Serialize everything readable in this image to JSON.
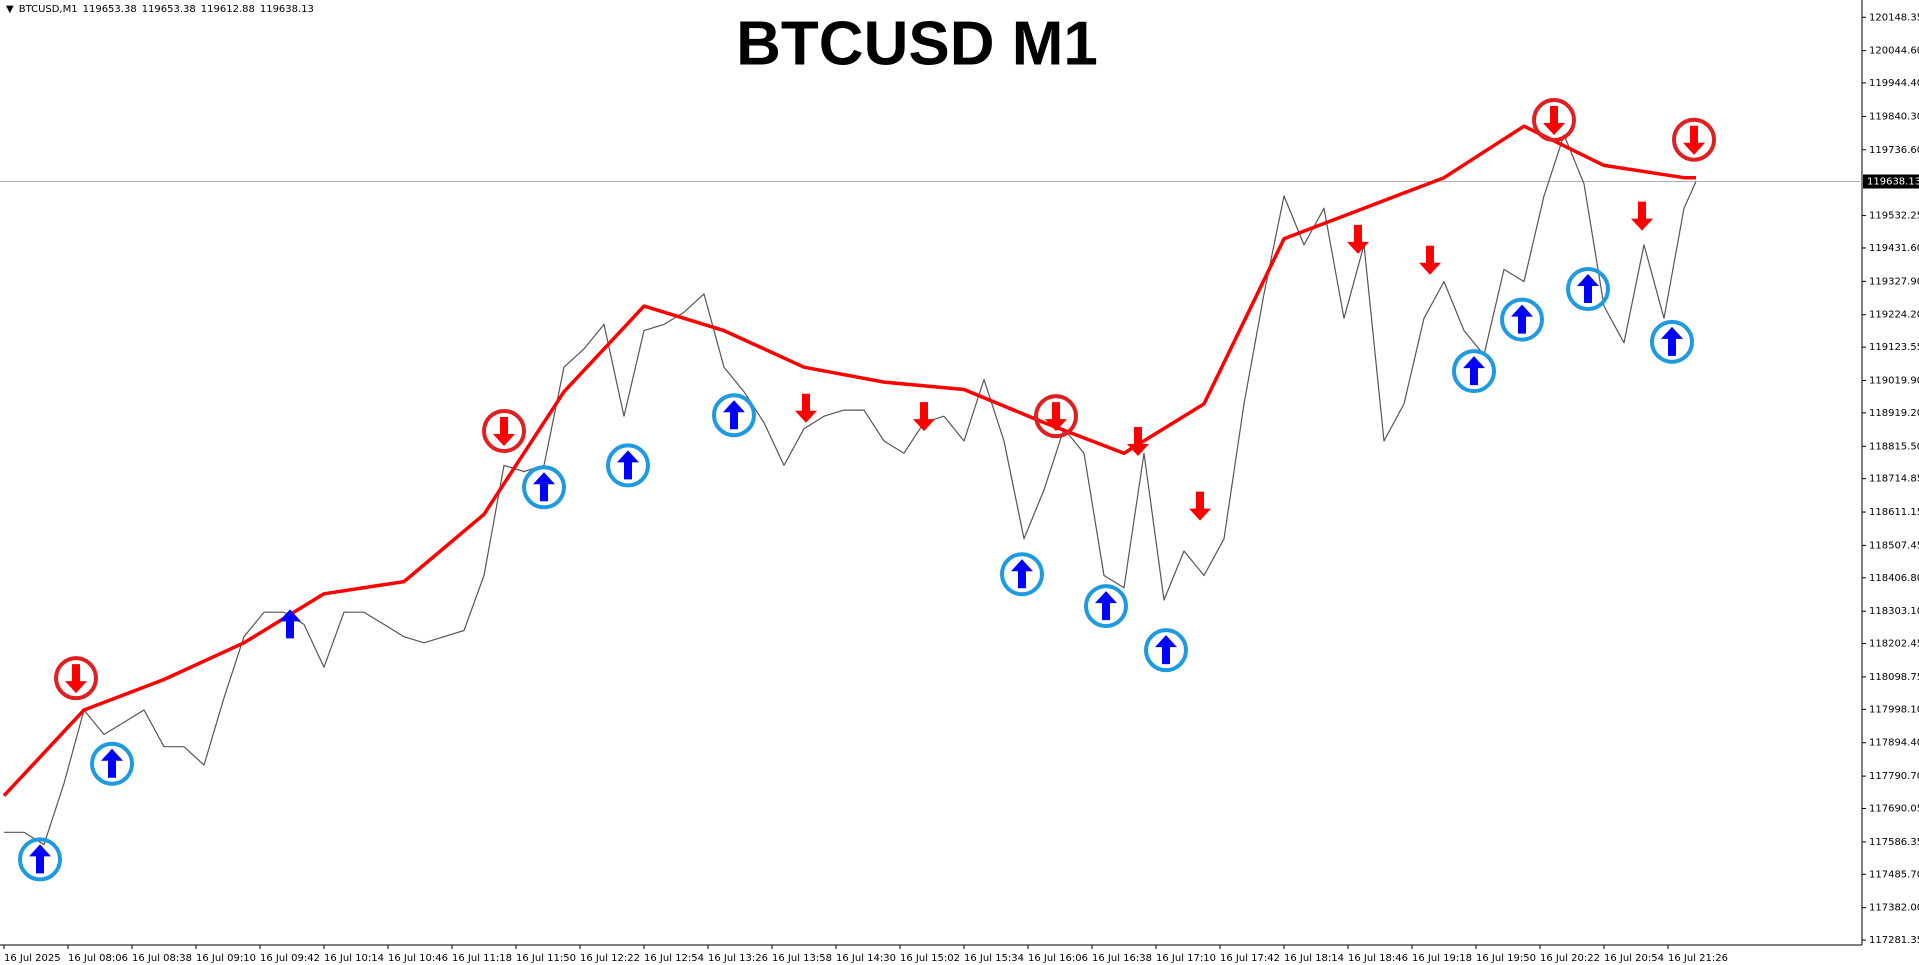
{
  "chart_data": {
    "type": "candles",
    "title": "BTCUSD M1",
    "info_label": "BTCUSD,M1",
    "info_values": [
      119653.38,
      119653.38,
      119612.88,
      119638.13
    ],
    "current_price": 119638.13,
    "xlim": [
      -2,
      929
    ],
    "ylim": [
      117266,
      120202
    ],
    "xticks": [
      {
        "value": 0,
        "label": "16 Jul 2025"
      },
      {
        "value": 32,
        "label": "16 Jul 08:06"
      },
      {
        "value": 64,
        "label": "16 Jul 08:38"
      },
      {
        "value": 96,
        "label": "16 Jul 09:10"
      },
      {
        "value": 128,
        "label": "16 Jul 09:42"
      },
      {
        "value": 160,
        "label": "16 Jul 10:14"
      },
      {
        "value": 192,
        "label": "16 Jul 10:46"
      },
      {
        "value": 224,
        "label": "16 Jul 11:18"
      },
      {
        "value": 256,
        "label": "16 Jul 11:50"
      },
      {
        "value": 288,
        "label": "16 Jul 12:22"
      },
      {
        "value": 320,
        "label": "16 Jul 12:54"
      },
      {
        "value": 352,
        "label": "16 Jul 13:26"
      },
      {
        "value": 384,
        "label": "16 Jul 13:58"
      },
      {
        "value": 416,
        "label": "16 Jul 14:30"
      },
      {
        "value": 448,
        "label": "16 Jul 15:02"
      },
      {
        "value": 480,
        "label": "16 Jul 15:34"
      },
      {
        "value": 512,
        "label": "16 Jul 16:06"
      },
      {
        "value": 544,
        "label": "16 Jul 16:38"
      },
      {
        "value": 576,
        "label": "16 Jul 17:10"
      },
      {
        "value": 608,
        "label": "16 Jul 17:42"
      },
      {
        "value": 640,
        "label": "16 Jul 18:14"
      },
      {
        "value": 672,
        "label": "16 Jul 18:46"
      },
      {
        "value": 704,
        "label": "16 Jul 19:18"
      },
      {
        "value": 736,
        "label": "16 Jul 19:50"
      },
      {
        "value": 768,
        "label": "16 Jul 20:22"
      },
      {
        "value": 800,
        "label": "16 Jul 20:54"
      },
      {
        "value": 832,
        "label": "16 Jul 21:26"
      }
    ],
    "yticks": [
      120148.35,
      {
        "value": 120044.6,
        "label": "120044.60"
      },
      {
        "value": 119944.4,
        "label": "119944.40"
      },
      {
        "value": 119840.3,
        "label": "119840.30"
      },
      {
        "value": 119736.6,
        "label": "119736.60"
      },
      119532.25,
      {
        "value": 119431.6,
        "label": "119431.60"
      },
      {
        "value": 119327.9,
        "label": "119327.90"
      },
      {
        "value": 119224.2,
        "label": "119224.20"
      },
      119123.55,
      {
        "value": 119019.9,
        "label": "119019.90"
      },
      {
        "value": 118919.2,
        "label": "118919.20"
      },
      {
        "value": 118815.5,
        "label": "118815.50"
      },
      118714.85,
      118611.15,
      118507.45,
      {
        "value": 118406.8,
        "label": "118406.80"
      },
      {
        "value": 118303.1,
        "label": "118303.10"
      },
      118202.45,
      118098.75,
      {
        "value": 117998.1,
        "label": "117998.10"
      },
      {
        "value": 117894.4,
        "label": "117894.40"
      },
      {
        "value": 117790.7,
        "label": "117790.70"
      },
      117690.05,
      117586.35,
      {
        "value": 117485.7,
        "label": "117485.70"
      },
      {
        "value": 117382,
        "label": "117382.00"
      },
      117281.35
    ],
    "series": [
      {
        "color": "#555555",
        "x": [
          0,
          10,
          20,
          30,
          40,
          50,
          60,
          70,
          80,
          90,
          100,
          110,
          120,
          130,
          140,
          150,
          160,
          170,
          180,
          190,
          200,
          210,
          220,
          230,
          240,
          250,
          260,
          270,
          280,
          290,
          300,
          310,
          320,
          330,
          340,
          350,
          360,
          370,
          380,
          390,
          400,
          410,
          420,
          430,
          440,
          450,
          460,
          470,
          480,
          490,
          500,
          510,
          520,
          530,
          540,
          550,
          560,
          570,
          580,
          590,
          600,
          610,
          620,
          630,
          640,
          650,
          660,
          670,
          680,
          690,
          700,
          710,
          720,
          730,
          740,
          750,
          760,
          770,
          780,
          790,
          800,
          810,
          820,
          830,
          840,
          846
        ],
        "values": [
          117616,
          117616,
          117578,
          117768,
          117996,
          117920,
          117958,
          117996,
          117882,
          117882,
          117825,
          118034,
          118224,
          118300,
          118300,
          118262,
          118129,
          118300,
          118300,
          118262,
          118224,
          118205,
          118224,
          118243,
          118414,
          118756,
          118737,
          118756,
          119061,
          119118,
          119194,
          118909,
          119175,
          119194,
          119232,
          119289,
          119061,
          118985,
          118889,
          118756,
          118870,
          118909,
          118928,
          118928,
          118832,
          118794,
          118889,
          118909,
          118832,
          119023,
          118832,
          118528,
          118680,
          118870,
          118794,
          118414,
          118376,
          118794,
          118338,
          118490,
          118414,
          118528,
          118947,
          119289,
          119593,
          119441,
          119555,
          119213,
          119441,
          118832,
          118947,
          119213,
          119327,
          119175,
          119099,
          119365,
          119327,
          119593,
          119783,
          119631,
          119251,
          119137,
          119441,
          119213,
          119555,
          119638.13
        ]
      },
      {
        "color": "#ff0000",
        "x": [
          0,
          40,
          80,
          120,
          160,
          200,
          240,
          280,
          320,
          360,
          400,
          440,
          480,
          520,
          560,
          600,
          640,
          680,
          720,
          760,
          800,
          840,
          846
        ],
        "values": [
          117730,
          117996,
          118091,
          118205,
          118357,
          118395,
          118604,
          118985,
          119251,
          119175,
          119061,
          119015,
          118992,
          118889,
          118794,
          118947,
          119460,
          119555,
          119650,
          119810,
          119688,
          119650,
          119650
        ]
      }
    ],
    "buy_signals": {
      "color": "#0000ff",
      "ring_color": "#1e9be0",
      "x": [
        18,
        54,
        143,
        270,
        312,
        365,
        509,
        551,
        581,
        735,
        759,
        792,
        834
      ],
      "values": [
        117532,
        117829,
        118262,
        118688,
        118756,
        118912,
        118418,
        118319,
        118182,
        119049,
        119209,
        119304,
        119140
      ],
      "circled": [
        true,
        true,
        false,
        true,
        true,
        true,
        true,
        true,
        true,
        true,
        true,
        true,
        true
      ]
    },
    "sell_signals": {
      "color": "#ff0000",
      "ring_color": "#e02020",
      "x": [
        36,
        250,
        401,
        460,
        526,
        567,
        598,
        677,
        713,
        775,
        819,
        845
      ],
      "values": [
        118095,
        118863,
        118935,
        118909,
        118909,
        118832,
        118631,
        119460,
        119395,
        119829,
        119532,
        119768
      ],
      "circled": [
        true,
        true,
        false,
        false,
        true,
        false,
        false,
        false,
        false,
        true,
        false,
        true
      ]
    }
  }
}
